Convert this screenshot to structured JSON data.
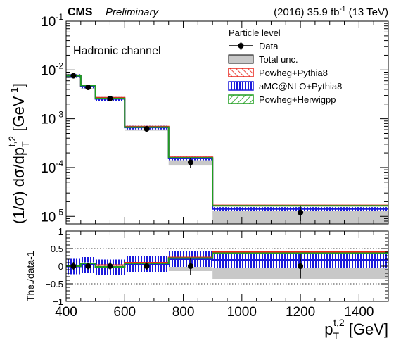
{
  "header": {
    "experiment": "CMS",
    "status": "Preliminary",
    "lumi_prefix": "(2016) 35.9 fb",
    "lumi_exponent": "-1",
    "lumi_suffix": " (13 TeV)"
  },
  "annotation": "Hadronic channel",
  "legend": {
    "title": "Particle level",
    "entries": [
      {
        "key": "data",
        "label": "Data"
      },
      {
        "key": "total_unc",
        "label": "Total unc."
      },
      {
        "key": "powheg_pythia8",
        "label": "Powheg+Pythia8"
      },
      {
        "key": "amcnlo_pythia8",
        "label": "aMC@NLO+Pythia8"
      },
      {
        "key": "powheg_herwigpp",
        "label": "Powheg+Herwigpp"
      }
    ]
  },
  "colors": {
    "powheg_pythia8": "#e8251b",
    "amcnlo_pythia8": "#1a1adc",
    "powheg_herwigpp": "#1f9e1f",
    "total_unc": "#c8c8c8",
    "data": "#000000"
  },
  "chart_data": [
    {
      "type": "line",
      "panel": "main",
      "ylabel": "(1/σ) dσ/dp_T^{t,2} [GeV^{-1}]",
      "ylabel_parts": {
        "a": "(1/σ) dσ/dp",
        "sub": "T",
        "sup": "t,2",
        "b": " [GeV",
        "b_sup": "-1",
        "c": "]"
      },
      "yscale": "log",
      "ylim": [
        7e-06,
        0.1
      ],
      "xlim": [
        400,
        1500
      ],
      "bin_edges": [
        400,
        450,
        500,
        600,
        750,
        900,
        1500
      ],
      "yticks": [
        {
          "value": 1e-05,
          "label": "10",
          "exp": "-5"
        },
        {
          "value": 0.0001,
          "label": "10",
          "exp": "-4"
        },
        {
          "value": 0.001,
          "label": "10",
          "exp": "-3"
        },
        {
          "value": 0.01,
          "label": "10",
          "exp": "-2"
        },
        {
          "value": 0.1,
          "label": "10",
          "exp": "-1"
        }
      ],
      "data": {
        "x": [
          425,
          475,
          550,
          675,
          825,
          1200
        ],
        "y": [
          0.0076,
          0.0044,
          0.0026,
          0.00062,
          0.000128,
          1.2e-05
        ],
        "err_lo": [
          0.0009,
          0.0004,
          0.0003,
          7e-05,
          3e-05,
          4e-06
        ],
        "err_hi": [
          0.0009,
          0.0004,
          0.0003,
          7e-05,
          3e-05,
          4e-06
        ]
      },
      "total_unc": {
        "lo": [
          0.0069,
          0.0041,
          0.0024,
          0.00057,
          0.00011,
          7e-06
        ],
        "hi": [
          0.0083,
          0.0047,
          0.0028,
          0.00067,
          0.000146,
          1.5e-05
        ]
      },
      "series": [
        {
          "key": "powheg_pythia8",
          "name": "Powheg+Pythia8",
          "values": [
            0.0077,
            0.0046,
            0.0027,
            0.00069,
            0.000163,
            1.68e-05
          ],
          "band": 0.03
        },
        {
          "key": "amcnlo_pythia8",
          "name": "aMC@NLO+Pythia8",
          "values": [
            0.0075,
            0.0046,
            0.00255,
            0.00066,
            0.000154,
            1.42e-05
          ],
          "band": 0.09
        },
        {
          "key": "powheg_herwigpp",
          "name": "Powheg+Herwigpp",
          "values": [
            0.0076,
            0.0048,
            0.0026,
            0.00067,
            0.000158,
            1.65e-05
          ],
          "band": 0.03
        }
      ]
    },
    {
      "type": "line",
      "panel": "ratio",
      "ylabel": "The./data-1",
      "xlabel": "p_T^{t,2} [GeV]",
      "xlabel_parts": {
        "a": "p",
        "sub": "T",
        "sup": "t,2",
        "b": " [GeV]"
      },
      "ylim": [
        -1,
        1
      ],
      "xlim": [
        400,
        1500
      ],
      "bin_edges": [
        400,
        450,
        500,
        600,
        750,
        900,
        1500
      ],
      "xticks": [
        {
          "value": 400,
          "label": "400"
        },
        {
          "value": 600,
          "label": "600"
        },
        {
          "value": 800,
          "label": "800"
        },
        {
          "value": 1000,
          "label": "1000"
        },
        {
          "value": 1200,
          "label": "1200"
        },
        {
          "value": 1400,
          "label": "1400"
        }
      ],
      "yticks": [
        {
          "value": -1,
          "label": "−1"
        },
        {
          "value": -0.5,
          "label": "−0.5"
        },
        {
          "value": 0,
          "label": "0"
        },
        {
          "value": 0.5,
          "label": "0.5"
        },
        {
          "value": 1,
          "label": "1"
        }
      ],
      "dotted_lines": [
        -0.5,
        0.5
      ],
      "data": {
        "x": [
          425,
          475,
          550,
          675,
          825,
          1200
        ],
        "y": [
          0,
          0,
          0,
          0,
          0,
          0
        ],
        "err_lo": [
          0.12,
          0.09,
          0.12,
          0.11,
          0.24,
          0.35
        ],
        "err_hi": [
          0.12,
          0.09,
          0.12,
          0.11,
          0.24,
          0.35
        ]
      },
      "total_unc": {
        "lo": [
          -0.09,
          -0.07,
          -0.09,
          -0.08,
          -0.14,
          -0.36
        ],
        "hi": [
          0.09,
          0.07,
          0.09,
          0.08,
          0.14,
          0.25
        ]
      },
      "series": [
        {
          "key": "powheg_pythia8",
          "name": "Powheg+Pythia8",
          "values": [
            0.02,
            0.04,
            0.03,
            0.1,
            0.25,
            0.4
          ],
          "band": 0.03
        },
        {
          "key": "amcnlo_pythia8",
          "name": "aMC@NLO+Pythia8",
          "values": [
            -0.01,
            0.04,
            -0.03,
            0.06,
            0.2,
            0.18
          ],
          "band": 0.22
        },
        {
          "key": "powheg_herwigpp",
          "name": "Powheg+Herwigpp",
          "values": [
            0.0,
            0.08,
            -0.02,
            0.08,
            0.23,
            0.37
          ],
          "band": 0.03
        }
      ]
    }
  ]
}
